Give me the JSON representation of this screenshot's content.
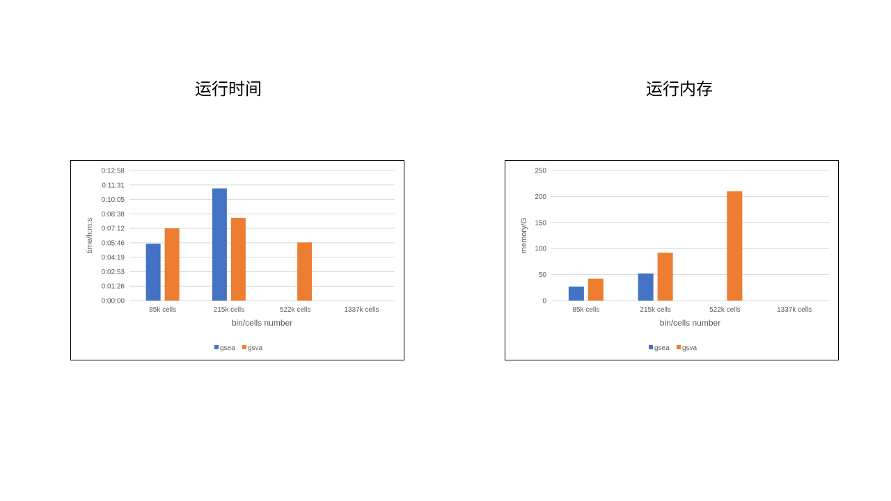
{
  "slide": {
    "titles": [
      "运行时间",
      "运行内存"
    ]
  },
  "colors": {
    "gsea": "#4472C4",
    "gsva": "#ED7D31",
    "grid": "#D9D9D9",
    "axis_text": "#595959"
  },
  "chart_data": [
    {
      "type": "bar",
      "categories": [
        "85k cells",
        "215k cells",
        "522k cells",
        "1337k cells"
      ],
      "series": [
        {
          "name": "gsea",
          "values": [
            "0:05:40",
            "0:11:11",
            null,
            null
          ]
        },
        {
          "name": "gsva",
          "values": [
            "0:07:12",
            "0:08:15",
            "0:05:48",
            null
          ]
        }
      ],
      "xlabel": "bin/cells number",
      "ylabel": "time/h:m:s",
      "ytick_labels": [
        "0:00:00",
        "0:01:26",
        "0:02:53",
        "0:04:19",
        "0:05:46",
        "0:07:12",
        "0:08:38",
        "0:10:05",
        "0:11:31",
        "0:12:58"
      ],
      "ylim": [
        "0:00:00",
        "0:12:58"
      ],
      "grid": true,
      "legend": "bottom"
    },
    {
      "type": "bar",
      "categories": [
        "85k cells",
        "215k cells",
        "522k cells",
        "1337k cells"
      ],
      "series": [
        {
          "name": "gsea",
          "values": [
            27,
            52,
            null,
            null
          ]
        },
        {
          "name": "gsva",
          "values": [
            42,
            92,
            210,
            null
          ]
        }
      ],
      "xlabel": "bin/cells number",
      "ylabel": "memory/G",
      "ytick_labels": [
        "0",
        "50",
        "100",
        "150",
        "200",
        "250"
      ],
      "ylim": [
        0,
        250
      ],
      "grid": true,
      "legend": "bottom"
    }
  ]
}
